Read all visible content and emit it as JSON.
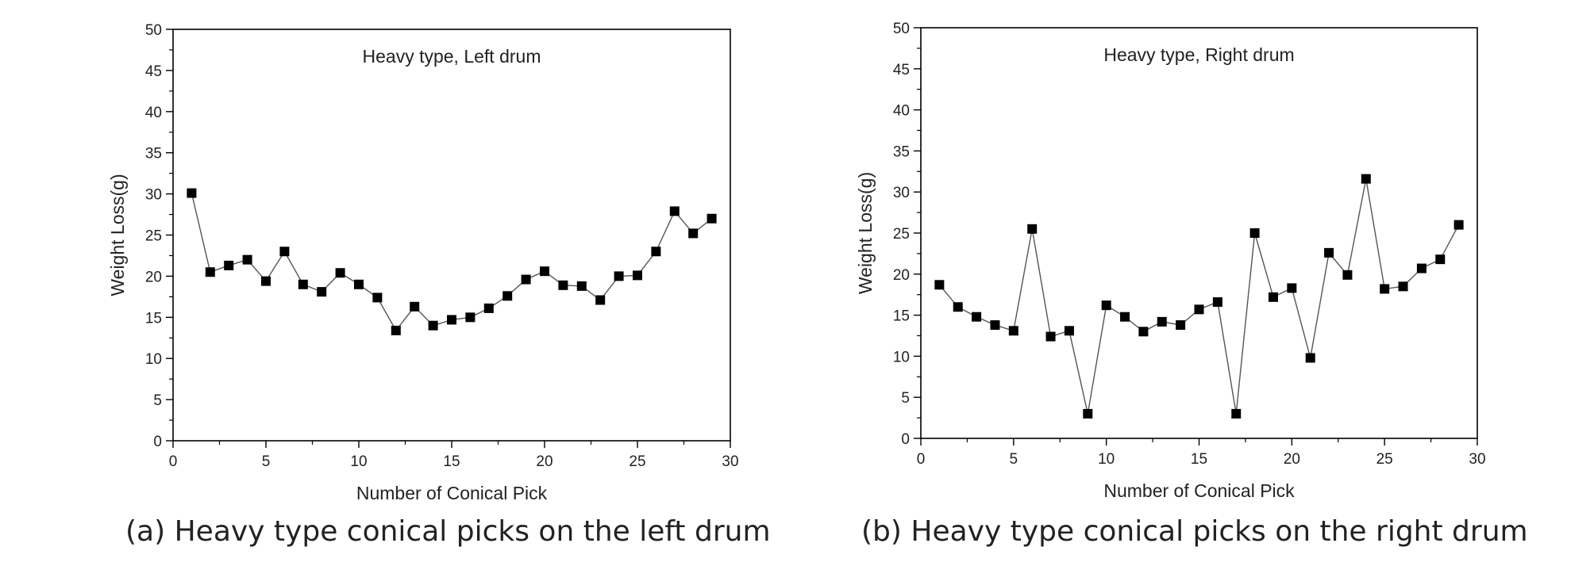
{
  "chart_data": [
    {
      "type": "line",
      "title": "Heavy type, Left drum",
      "xlabel": "Number of Conical Pick",
      "ylabel": "Weight Loss(g)",
      "xlim": [
        0,
        30
      ],
      "ylim": [
        0,
        50
      ],
      "xticks": [
        0,
        5,
        10,
        15,
        20,
        25,
        30
      ],
      "yticks": [
        0,
        5,
        10,
        15,
        20,
        25,
        30,
        35,
        40,
        45,
        50
      ],
      "grid": false,
      "marker": "square",
      "series": [
        {
          "x": [
            1,
            2,
            3,
            4,
            5,
            6,
            7,
            8,
            9,
            10,
            11,
            12,
            13,
            14,
            15,
            16,
            17,
            18,
            19,
            20,
            21,
            22,
            23,
            24,
            25,
            26,
            27,
            28,
            29
          ],
          "values": [
            30.1,
            20.5,
            21.3,
            22.0,
            19.4,
            23.0,
            19.0,
            18.1,
            20.4,
            19.0,
            17.4,
            13.4,
            16.3,
            14.0,
            14.7,
            15.0,
            16.1,
            17.6,
            19.6,
            20.6,
            18.9,
            18.8,
            17.1,
            20.0,
            20.1,
            23.0,
            27.9,
            25.2,
            27.0
          ]
        }
      ]
    },
    {
      "type": "line",
      "title": "Heavy type, Right drum",
      "xlabel": "Number of Conical Pick",
      "ylabel": "Weight Loss(g)",
      "xlim": [
        0,
        30
      ],
      "ylim": [
        0,
        50
      ],
      "xticks": [
        0,
        5,
        10,
        15,
        20,
        25,
        30
      ],
      "yticks": [
        0,
        5,
        10,
        15,
        20,
        25,
        30,
        35,
        40,
        45,
        50
      ],
      "grid": false,
      "marker": "square",
      "series": [
        {
          "x": [
            1,
            2,
            3,
            4,
            5,
            6,
            7,
            8,
            9,
            10,
            11,
            12,
            13,
            14,
            15,
            16,
            17,
            18,
            19,
            20,
            21,
            22,
            23,
            24,
            25,
            26,
            27,
            28,
            29
          ],
          "values": [
            18.7,
            16.0,
            14.8,
            13.8,
            13.1,
            25.5,
            12.4,
            13.1,
            3.0,
            16.2,
            14.8,
            13.0,
            14.2,
            13.8,
            15.7,
            16.6,
            3.0,
            25.0,
            17.2,
            18.3,
            9.8,
            22.6,
            19.9,
            31.6,
            18.2,
            18.5,
            20.7,
            21.8,
            26.0
          ]
        }
      ]
    }
  ],
  "captions": {
    "a": "(a) Heavy type conical picks on the left drum",
    "b": "(b) Heavy type conical picks on the right drum"
  },
  "colors": {
    "axis": "#000000",
    "line": "#555555",
    "marker": "#000000",
    "text": "#222222"
  }
}
